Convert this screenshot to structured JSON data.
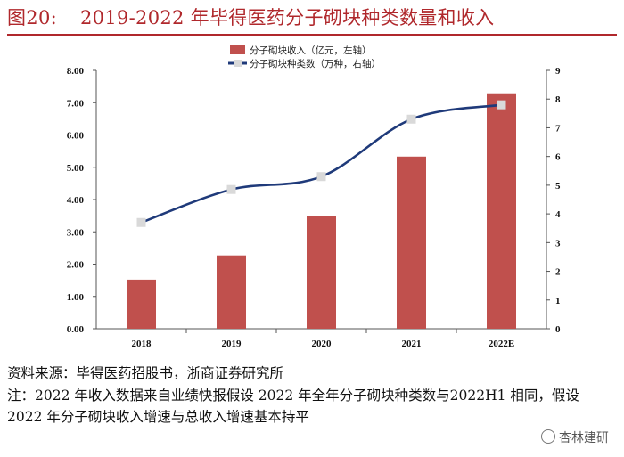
{
  "header": {
    "figure_number": "图20:",
    "title": "2019-2022 年毕得医药分子砌块种类数量和收入"
  },
  "chart_data": {
    "type": "bar+line",
    "categories": [
      "2018",
      "2019",
      "2020",
      "2021",
      "2022E"
    ],
    "series": [
      {
        "name": "分子砌块收入（亿元，左轴）",
        "kind": "bar",
        "axis": "left",
        "color": "#c0504d",
        "values": [
          1.52,
          2.27,
          3.49,
          5.33,
          7.29
        ]
      },
      {
        "name": "分子砌块种类数（万种，右轴）",
        "kind": "line",
        "axis": "right",
        "color": "#1f3a7a",
        "values": [
          3.7,
          4.85,
          5.3,
          7.3,
          7.8
        ]
      }
    ],
    "y_left": {
      "min": 0,
      "max": 8,
      "ticks": [
        "0.00",
        "1.00",
        "2.00",
        "3.00",
        "4.00",
        "5.00",
        "6.00",
        "7.00",
        "8.00"
      ]
    },
    "y_right": {
      "min": 0,
      "max": 9,
      "ticks": [
        "0",
        "1",
        "2",
        "3",
        "4",
        "5",
        "6",
        "7",
        "8",
        "9"
      ]
    },
    "legend_position": "top-center"
  },
  "source": "资料来源：毕得医药招股书，浙商证券研究所",
  "note": "注：2022 年收入数据来自业绩快报假设 2022 年全年分子砌块种类数与2022H1 相同，假设 2022 年分子砌块收入增速与总收入增速基本持平",
  "watermark": "杏林建研"
}
